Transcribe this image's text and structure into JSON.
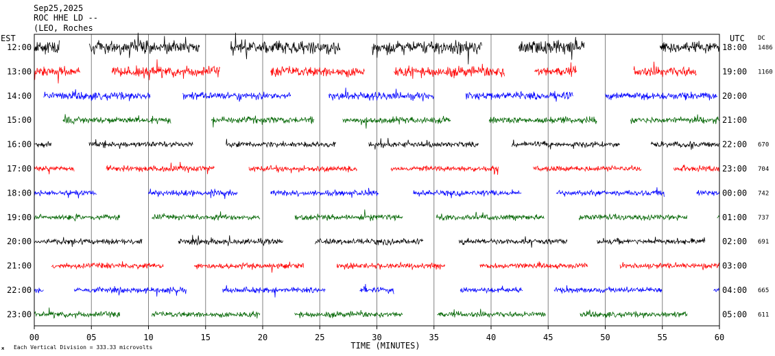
{
  "header": {
    "line1": "Sep25,2025",
    "line2": "ROC HHE LD --",
    "line3": "(LEO, Roches"
  },
  "left_axis_title": "EST",
  "right_axis_title": "UTC",
  "dc_title": "DC",
  "footer_note": "Each Vertical Division =  333.33 microvolts",
  "chart_data": {
    "type": "line",
    "subtype": "helicorder",
    "xlabel": "TIME (MINUTES)",
    "xlim": [
      0,
      60
    ],
    "x_ticks": [
      0,
      5,
      10,
      15,
      20,
      25,
      30,
      35,
      40,
      45,
      50,
      55,
      60
    ],
    "x_tick_labels": [
      "00",
      "05",
      "10",
      "15",
      "20",
      "25",
      "30",
      "35",
      "40",
      "45",
      "50",
      "55",
      "60"
    ],
    "grid": true,
    "trace_colors": [
      "#000000",
      "#ff0000",
      "#0000ff",
      "#006400"
    ],
    "rows": [
      {
        "est": "12:00",
        "utc": "18:00",
        "dc": "1486",
        "color": "#000000",
        "segments": [
          [
            0.0,
            2.2
          ],
          [
            4.8,
            14.5
          ],
          [
            17.2,
            26.8
          ],
          [
            29.6,
            39.2
          ],
          [
            42.4,
            48.2
          ],
          [
            54.8,
            60.0
          ]
        ],
        "activity": 9
      },
      {
        "est": "13:00",
        "utc": "19:00",
        "dc": "1160",
        "color": "#ff0000",
        "segments": [
          [
            0.0,
            4.0
          ],
          [
            6.8,
            16.3
          ],
          [
            20.7,
            28.9
          ],
          [
            31.5,
            41.2
          ],
          [
            43.8,
            47.5
          ],
          [
            52.5,
            58.0
          ]
        ],
        "activity": 6
      },
      {
        "est": "14:00",
        "utc": "20:00",
        "dc": "",
        "color": "#0000ff",
        "segments": [
          [
            0.8,
            10.2
          ],
          [
            13.0,
            22.5
          ],
          [
            25.8,
            35.0
          ],
          [
            37.8,
            47.2
          ],
          [
            50.0,
            59.8
          ]
        ],
        "activity": 4
      },
      {
        "est": "15:00",
        "utc": "21:00",
        "dc": "",
        "color": "#006400",
        "segments": [
          [
            2.5,
            12.0
          ],
          [
            15.5,
            24.5
          ],
          [
            27.0,
            36.5
          ],
          [
            39.8,
            49.3
          ],
          [
            52.2,
            60.0
          ]
        ],
        "activity": 3
      },
      {
        "est": "16:00",
        "utc": "22:00",
        "dc": "670",
        "color": "#000000",
        "segments": [
          [
            0.0,
            1.5
          ],
          [
            4.8,
            13.9
          ],
          [
            16.8,
            26.4
          ],
          [
            29.3,
            38.9
          ],
          [
            41.8,
            51.3
          ],
          [
            54.0,
            60.0
          ]
        ],
        "activity": 2
      },
      {
        "est": "17:00",
        "utc": "23:00",
        "dc": "704",
        "color": "#ff0000",
        "segments": [
          [
            0.0,
            3.5
          ],
          [
            6.3,
            15.8
          ],
          [
            18.8,
            28.3
          ],
          [
            31.2,
            40.7
          ],
          [
            43.7,
            53.2
          ],
          [
            56.0,
            60.0
          ]
        ],
        "activity": 2
      },
      {
        "est": "18:00",
        "utc": "00:00",
        "dc": "742",
        "color": "#0000ff",
        "segments": [
          [
            0.0,
            5.5
          ],
          [
            10.0,
            17.8
          ],
          [
            20.7,
            30.2
          ],
          [
            33.2,
            42.7
          ],
          [
            45.7,
            55.2
          ],
          [
            58.0,
            60.0
          ]
        ],
        "activity": 2
      },
      {
        "est": "19:00",
        "utc": "01:00",
        "dc": "737",
        "color": "#006400",
        "segments": [
          [
            0.0,
            7.5
          ],
          [
            10.3,
            19.8
          ],
          [
            22.8,
            32.3
          ],
          [
            35.2,
            44.7
          ],
          [
            47.7,
            57.2
          ],
          [
            59.8,
            60.0
          ]
        ],
        "activity": 2
      },
      {
        "est": "20:00",
        "utc": "02:00",
        "dc": "691",
        "color": "#000000",
        "segments": [
          [
            0.0,
            9.5
          ],
          [
            12.6,
            21.8
          ],
          [
            24.6,
            34.1
          ],
          [
            37.2,
            46.7
          ],
          [
            49.3,
            58.8
          ]
        ],
        "activity": 2
      },
      {
        "est": "21:00",
        "utc": "03:00",
        "dc": "",
        "color": "#ff0000",
        "segments": [
          [
            1.5,
            11.3
          ],
          [
            14.0,
            23.6
          ],
          [
            26.5,
            36.0
          ],
          [
            39.0,
            48.5
          ],
          [
            51.3,
            60.0
          ]
        ],
        "activity": 2
      },
      {
        "est": "22:00",
        "utc": "04:00",
        "dc": "665",
        "color": "#0000ff",
        "segments": [
          [
            0.0,
            0.8
          ],
          [
            3.5,
            13.3
          ],
          [
            16.5,
            25.5
          ],
          [
            28.5,
            31.5
          ],
          [
            37.3,
            42.8
          ],
          [
            45.5,
            55.0
          ],
          [
            59.5,
            60.0
          ]
        ],
        "activity": 2
      },
      {
        "est": "23:00",
        "utc": "05:00",
        "dc": "611",
        "color": "#006400",
        "segments": [
          [
            0.0,
            7.5
          ],
          [
            10.3,
            19.8
          ],
          [
            22.8,
            32.3
          ],
          [
            35.3,
            44.8
          ],
          [
            47.8,
            57.2
          ]
        ],
        "activity": 2
      }
    ]
  }
}
